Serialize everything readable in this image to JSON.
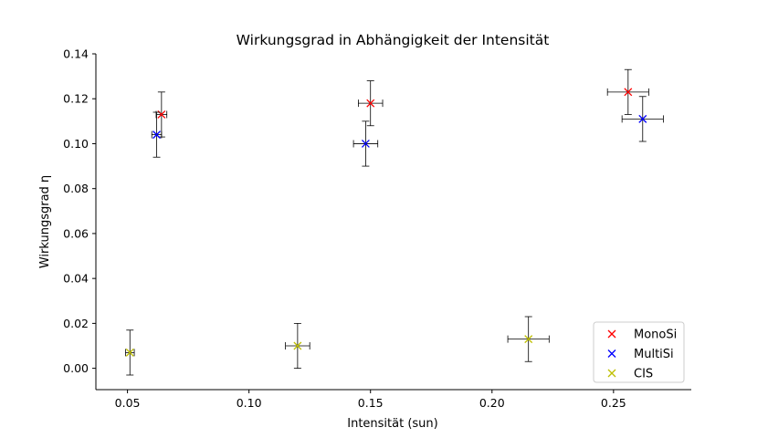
{
  "chart_data": {
    "type": "scatter",
    "title": "Wirkungsgrad in Abhängigkeit der Intensität",
    "xlabel": "Intensität (sun)",
    "ylabel": "Wirkungsgrad η",
    "xlim": [
      0.037,
      0.282
    ],
    "ylim": [
      -0.0095,
      0.14
    ],
    "xticks": [
      0.05,
      0.1,
      0.15,
      0.2,
      0.25
    ],
    "xtick_labels": [
      "0.05",
      "0.10",
      "0.15",
      "0.20",
      "0.25"
    ],
    "yticks": [
      0.0,
      0.02,
      0.04,
      0.06,
      0.08,
      0.1,
      0.12,
      0.14
    ],
    "ytick_labels": [
      "0.00",
      "0.02",
      "0.04",
      "0.06",
      "0.08",
      "0.10",
      "0.12",
      "0.14"
    ],
    "grid": false,
    "legend_position": "bottom-right",
    "series": [
      {
        "name": "MonoSi",
        "color": "#ff0000",
        "marker": "x",
        "points": [
          {
            "x": 0.064,
            "y": 0.113,
            "xerr": 0.0022,
            "yerr": 0.01
          },
          {
            "x": 0.15,
            "y": 0.118,
            "xerr": 0.005,
            "yerr": 0.01
          },
          {
            "x": 0.256,
            "y": 0.123,
            "xerr": 0.0085,
            "yerr": 0.01
          }
        ]
      },
      {
        "name": "MultiSi",
        "color": "#0000ff",
        "marker": "x",
        "points": [
          {
            "x": 0.062,
            "y": 0.104,
            "xerr": 0.002,
            "yerr": 0.01
          },
          {
            "x": 0.148,
            "y": 0.1,
            "xerr": 0.005,
            "yerr": 0.01
          },
          {
            "x": 0.262,
            "y": 0.111,
            "xerr": 0.0085,
            "yerr": 0.01
          }
        ]
      },
      {
        "name": "CIS",
        "color": "#bfbf00",
        "marker": "x",
        "points": [
          {
            "x": 0.051,
            "y": 0.007,
            "xerr": 0.0018,
            "yerr": 0.01
          },
          {
            "x": 0.12,
            "y": 0.01,
            "xerr": 0.005,
            "yerr": 0.01
          },
          {
            "x": 0.215,
            "y": 0.013,
            "xerr": 0.0085,
            "yerr": 0.01
          }
        ]
      }
    ]
  }
}
